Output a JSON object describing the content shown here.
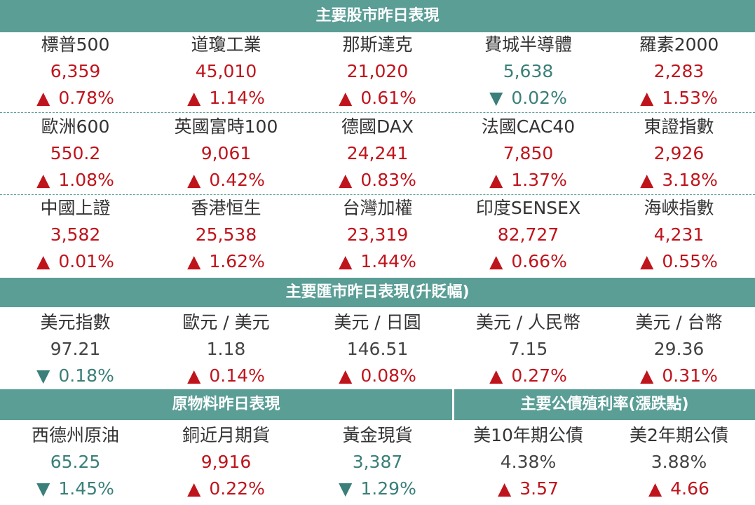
{
  "sections": {
    "stocks_title": "主要股市昨日表現",
    "fx_title": "主要匯市昨日表現(升貶幅)",
    "commodities_title": "原物料昨日表現",
    "bonds_title": "主要公債殖利率(漲跌點)"
  },
  "arrows": {
    "up": "▲",
    "down": "▼"
  },
  "colors": {
    "band": "#5a9e96",
    "up": "#c0141c",
    "down": "#3a7f79",
    "neutral": "#444444"
  },
  "stocks": [
    {
      "name": "標普500",
      "value": "6,359",
      "dir": "up",
      "change": "0.78%"
    },
    {
      "name": "道瓊工業",
      "value": "45,010",
      "dir": "up",
      "change": "1.14%"
    },
    {
      "name": "那斯達克",
      "value": "21,020",
      "dir": "up",
      "change": "0.61%"
    },
    {
      "name": "費城半導體",
      "value": "5,638",
      "dir": "down",
      "change": "0.02%"
    },
    {
      "name": "羅素2000",
      "value": "2,283",
      "dir": "up",
      "change": "1.53%"
    },
    {
      "name": "歐洲600",
      "value": "550.2",
      "dir": "up",
      "change": "1.08%"
    },
    {
      "name": "英國富時100",
      "value": "9,061",
      "dir": "up",
      "change": "0.42%"
    },
    {
      "name": "德國DAX",
      "value": "24,241",
      "dir": "up",
      "change": "0.83%"
    },
    {
      "name": "法國CAC40",
      "value": "7,850",
      "dir": "up",
      "change": "1.37%"
    },
    {
      "name": "東證指數",
      "value": "2,926",
      "dir": "up",
      "change": "3.18%"
    },
    {
      "name": "中國上證",
      "value": "3,582",
      "dir": "up",
      "change": "0.01%"
    },
    {
      "name": "香港恒生",
      "value": "25,538",
      "dir": "up",
      "change": "1.62%"
    },
    {
      "name": "台灣加權",
      "value": "23,319",
      "dir": "up",
      "change": "1.44%"
    },
    {
      "name": "印度SENSEX",
      "value": "82,727",
      "dir": "up",
      "change": "0.66%"
    },
    {
      "name": "海峽指數",
      "value": "4,231",
      "dir": "up",
      "change": "0.55%"
    }
  ],
  "fx": [
    {
      "name": "美元指數",
      "value": "97.21",
      "dir": "down",
      "change": "0.18%"
    },
    {
      "name": "歐元 / 美元",
      "value": "1.18",
      "dir": "up",
      "change": "0.14%"
    },
    {
      "name": "美元 / 日圓",
      "value": "146.51",
      "dir": "up",
      "change": "0.08%"
    },
    {
      "name": "美元 / 人民幣",
      "value": "7.15",
      "dir": "up",
      "change": "0.27%"
    },
    {
      "name": "美元 / 台幣",
      "value": "29.36",
      "dir": "up",
      "change": "0.31%"
    }
  ],
  "commodities": [
    {
      "name": "西德州原油",
      "value": "65.25",
      "dir": "down",
      "change": "1.45%"
    },
    {
      "name": "銅近月期貨",
      "value": "9,916",
      "dir": "up",
      "change": "0.22%"
    },
    {
      "name": "黃金現貨",
      "value": "3,387",
      "dir": "down",
      "change": "1.29%"
    }
  ],
  "bonds": [
    {
      "name": "美10年期公債",
      "value": "4.38%",
      "dir": "up",
      "change": "3.57"
    },
    {
      "name": "美2年期公債",
      "value": "3.88%",
      "dir": "up",
      "change": "4.66"
    }
  ]
}
